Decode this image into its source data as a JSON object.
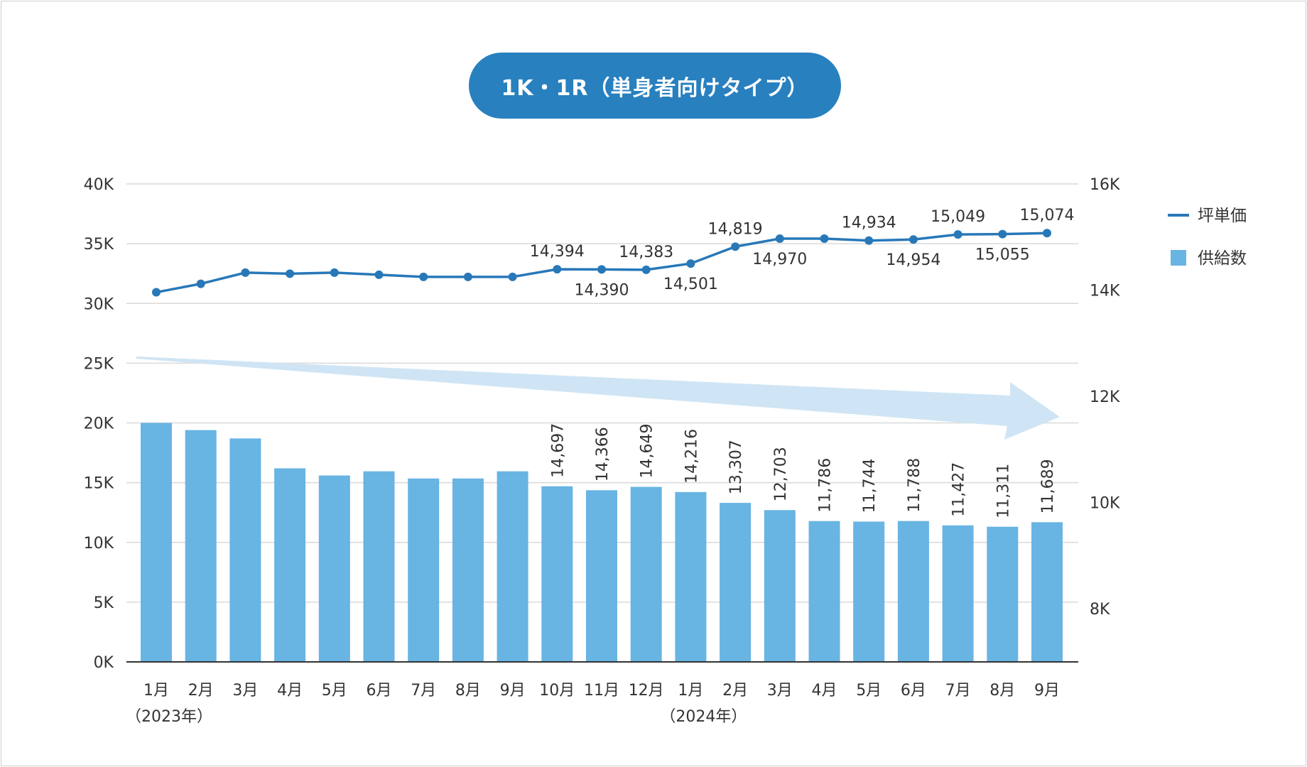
{
  "title": "1K・1R（単身者向けタイプ）",
  "colors": {
    "bar": "#68b4e3",
    "line": "#2878b8",
    "arrow": "#cfe5f5",
    "grid": "#d9d9d9",
    "axis": "#333333",
    "text": "#333333",
    "title_bg": "#2880bf"
  },
  "chart_data": {
    "type": "bar+line",
    "categories": [
      "1月",
      "2月",
      "3月",
      "4月",
      "5月",
      "6月",
      "7月",
      "8月",
      "9月",
      "10月",
      "11月",
      "12月",
      "1月",
      "2月",
      "3月",
      "4月",
      "5月",
      "6月",
      "7月",
      "8月",
      "9月"
    ],
    "year_labels": [
      {
        "index": 0,
        "text": "（2023年）"
      },
      {
        "index": 12,
        "text": "（2024年）"
      }
    ],
    "left_axis": {
      "min": 0,
      "max": 40000,
      "ticks": [
        0,
        5000,
        10000,
        15000,
        20000,
        25000,
        30000,
        35000,
        40000
      ],
      "tick_labels": [
        "0K",
        "5K",
        "10K",
        "15K",
        "20K",
        "25K",
        "30K",
        "35K",
        "40K"
      ]
    },
    "right_axis": {
      "min": 7000,
      "max": 16000,
      "ticks": [
        8000,
        10000,
        12000,
        14000,
        16000
      ],
      "tick_labels": [
        "8K",
        "10K",
        "12K",
        "14K",
        "16K"
      ]
    },
    "grid": true,
    "legend_position": "right",
    "series": [
      {
        "name": "供給数",
        "type": "bar",
        "axis": "left",
        "values": [
          20000,
          19400,
          18700,
          16200,
          15600,
          15950,
          15350,
          15350,
          15950,
          14697,
          14366,
          14649,
          14216,
          13307,
          12703,
          11786,
          11744,
          11788,
          11427,
          11311,
          11689
        ],
        "labels": [
          "",
          "",
          "",
          "",
          "",
          "",
          "",
          "",
          "",
          "14,697",
          "14,366",
          "14,649",
          "14,216",
          "13,307",
          "12,703",
          "11,786",
          "11,744",
          "11,788",
          "11,427",
          "11,311",
          "11,689"
        ]
      },
      {
        "name": "坪単価",
        "type": "line",
        "axis": "right",
        "values": [
          13960,
          14120,
          14330,
          14310,
          14330,
          14290,
          14250,
          14250,
          14250,
          14394,
          14390,
          14383,
          14501,
          14819,
          14970,
          14970,
          14934,
          14954,
          15049,
          15055,
          15074
        ],
        "labels": [
          "",
          "",
          "",
          "",
          "",
          "",
          "",
          "",
          "",
          "14,394",
          "14,390",
          "14,383",
          "14,501",
          "14,819",
          "14,970",
          "",
          "14,934",
          "14,954",
          "15,049",
          "15,055",
          "15,074"
        ],
        "label_positions": [
          "",
          "",
          "",
          "",
          "",
          "",
          "",
          "",
          "",
          "above",
          "below",
          "above",
          "below",
          "above",
          "below",
          "",
          "above",
          "below",
          "above",
          "below",
          "above"
        ]
      }
    ],
    "annotation": "downward trend arrow over bars"
  }
}
